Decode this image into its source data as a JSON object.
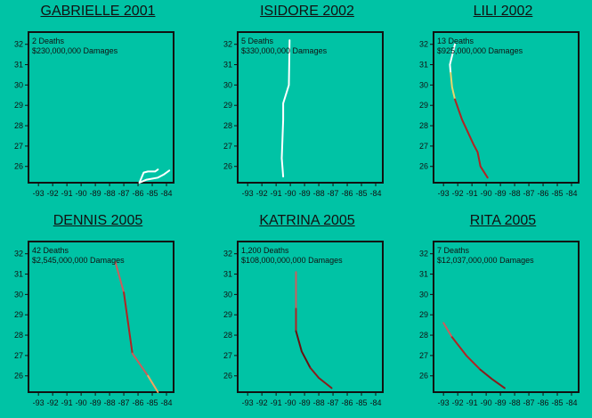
{
  "chart_data": [
    {
      "type": "line",
      "title": "GABRIELLE 2001",
      "deaths": "2 Deaths",
      "damages": "$230,000,000 Damages",
      "xlim": [
        -93.7,
        -83.5
      ],
      "ylim": [
        25.2,
        32.6
      ],
      "xticks": [
        -93,
        -92,
        -91,
        -90,
        -89,
        -88,
        -87,
        -86,
        -85,
        -84
      ],
      "yticks": [
        26,
        27,
        28,
        29,
        30,
        31,
        32
      ],
      "segments": [
        {
          "color": "#ffffff",
          "points": [
            [
              -85.9,
              25.2
            ],
            [
              -85.6,
              25.7
            ],
            [
              -85.3,
              25.75
            ],
            [
              -84.8,
              25.75
            ],
            [
              -84.6,
              25.85
            ]
          ]
        },
        {
          "color": "#ffffff",
          "points": [
            [
              -85.9,
              25.2
            ],
            [
              -85.4,
              25.35
            ],
            [
              -84.6,
              25.45
            ],
            [
              -84.2,
              25.6
            ],
            [
              -83.8,
              25.8
            ]
          ]
        }
      ]
    },
    {
      "type": "line",
      "title": "ISIDORE 2002",
      "deaths": "5 Deaths",
      "damages": "$330,000,000 Damages",
      "xlim": [
        -93.7,
        -83.5
      ],
      "ylim": [
        25.2,
        32.6
      ],
      "xticks": [
        -93,
        -92,
        -91,
        -90,
        -89,
        -88,
        -87,
        -86,
        -85,
        -84
      ],
      "yticks": [
        26,
        27,
        28,
        29,
        30,
        31,
        32
      ],
      "segments": [
        {
          "color": "#ffffff",
          "points": [
            [
              -90.5,
              25.5
            ],
            [
              -90.6,
              26.4
            ],
            [
              -90.5,
              28.3
            ],
            [
              -90.5,
              29.1
            ],
            [
              -90.1,
              30.0
            ],
            [
              -90.05,
              32.2
            ]
          ]
        }
      ]
    },
    {
      "type": "line",
      "title": "LILI 2002",
      "deaths": "13 Deaths",
      "damages": "$925,000,000 Damages",
      "xlim": [
        -93.7,
        -83.5
      ],
      "ylim": [
        25.2,
        32.6
      ],
      "xticks": [
        -93,
        -92,
        -91,
        -90,
        -89,
        -88,
        -87,
        -86,
        -85,
        -84
      ],
      "yticks": [
        26,
        27,
        28,
        29,
        30,
        31,
        32
      ],
      "segments": [
        {
          "color": "#ffffff",
          "points": [
            [
              -92.2,
              32.0
            ],
            [
              -92.55,
              31.0
            ],
            [
              -92.5,
              30.6
            ]
          ]
        },
        {
          "color": "#e8d66b",
          "points": [
            [
              -92.5,
              30.6
            ],
            [
              -92.4,
              29.9
            ],
            [
              -92.2,
              29.3
            ]
          ]
        },
        {
          "color": "#b22222",
          "points": [
            [
              -92.2,
              29.3
            ],
            [
              -91.7,
              28.3
            ],
            [
              -90.9,
              27.1
            ],
            [
              -90.6,
              26.7
            ],
            [
              -90.4,
              26.0
            ],
            [
              -89.9,
              25.45
            ]
          ]
        }
      ]
    },
    {
      "type": "line",
      "title": "DENNIS 2005",
      "deaths": "42 Deaths",
      "damages": "$2,545,000,000 Damages",
      "xlim": [
        -93.7,
        -83.5
      ],
      "ylim": [
        25.2,
        32.6
      ],
      "xticks": [
        -93,
        -92,
        -91,
        -90,
        -89,
        -88,
        -87,
        -86,
        -85,
        -84
      ],
      "yticks": [
        26,
        27,
        28,
        29,
        30,
        31,
        32
      ],
      "segments": [
        {
          "color": "#cd5c5c",
          "points": [
            [
              -87.6,
              31.6
            ],
            [
              -87.0,
              30.1
            ]
          ]
        },
        {
          "color": "#b22222",
          "points": [
            [
              -87.0,
              30.1
            ],
            [
              -86.4,
              27.1
            ]
          ]
        },
        {
          "color": "#cd5c5c",
          "points": [
            [
              -86.4,
              27.1
            ],
            [
              -85.3,
              26.0
            ]
          ]
        },
        {
          "color": "#f4a460",
          "points": [
            [
              -85.3,
              26.0
            ],
            [
              -84.6,
              25.2
            ]
          ]
        }
      ]
    },
    {
      "type": "line",
      "title": "KATRINA 2005",
      "deaths": "1,200 Deaths",
      "damages": "$108,000,000,000 Damages",
      "xlim": [
        -93.7,
        -83.5
      ],
      "ylim": [
        25.2,
        32.6
      ],
      "xticks": [
        -93,
        -92,
        -91,
        -90,
        -89,
        -88,
        -87,
        -86,
        -85,
        -84
      ],
      "yticks": [
        26,
        27,
        28,
        29,
        30,
        31,
        32
      ],
      "segments": [
        {
          "color": "#cd5c5c",
          "points": [
            [
              -89.6,
              31.1
            ],
            [
              -89.6,
              29.3
            ]
          ]
        },
        {
          "color": "#b22222",
          "points": [
            [
              -89.6,
              29.3
            ],
            [
              -89.6,
              28.2
            ]
          ]
        },
        {
          "color": "#6b0f0f",
          "points": [
            [
              -89.6,
              28.2
            ],
            [
              -89.2,
              27.2
            ],
            [
              -88.6,
              26.4
            ]
          ]
        },
        {
          "color": "#8b1a1a",
          "points": [
            [
              -88.6,
              26.4
            ],
            [
              -88.0,
              25.9
            ],
            [
              -87.1,
              25.4
            ]
          ]
        }
      ]
    },
    {
      "type": "line",
      "title": "RITA 2005",
      "deaths": "7 Deaths",
      "damages": "$12,037,000,000 Damages",
      "xlim": [
        -93.7,
        -83.5
      ],
      "ylim": [
        25.2,
        32.6
      ],
      "xticks": [
        -93,
        -92,
        -91,
        -90,
        -89,
        -88,
        -87,
        -86,
        -85,
        -84
      ],
      "yticks": [
        26,
        27,
        28,
        29,
        30,
        31,
        32
      ],
      "segments": [
        {
          "color": "#cd5c5c",
          "points": [
            [
              -93.0,
              28.6
            ],
            [
              -92.4,
              27.9
            ]
          ]
        },
        {
          "color": "#b22222",
          "points": [
            [
              -92.4,
              27.9
            ],
            [
              -91.4,
              27.0
            ],
            [
              -90.4,
              26.3
            ]
          ]
        },
        {
          "color": "#8b1a1a",
          "points": [
            [
              -90.4,
              26.3
            ],
            [
              -89.6,
              25.85
            ],
            [
              -88.7,
              25.4
            ]
          ]
        }
      ]
    }
  ]
}
